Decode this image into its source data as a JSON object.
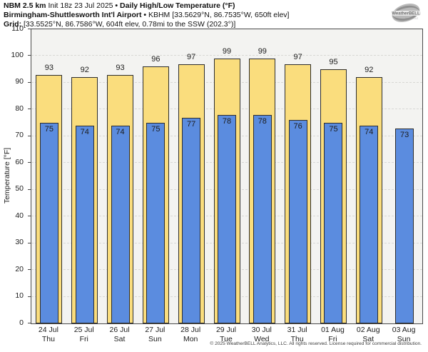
{
  "header": {
    "model": "NBM 2.5 km ",
    "init": "Init 18z 23 Jul 2025 ",
    "sep1": "• ",
    "product": "Daily High/Low Temperature (°F)",
    "station": "Birmingham-Shuttlesworth Int'l Airport ",
    "sep2": "• ",
    "station_meta": "KBHM [33.5629°N, 86.7535°W, 650ft elev]",
    "grid_label": "Grid: ",
    "grid_meta": "[33.5525°N, 86.7586°W, 604ft elev, 0.78mi to the SSW (202.3°)]"
  },
  "logo": {
    "brand": "WeatherBELL",
    "sub": "Analytics LLC"
  },
  "footer": {
    "copyright": "© 2025 WeatherBELL Analytics, LLC. All rights reserved. License required for commercial distribution."
  },
  "chart_data": {
    "type": "bar",
    "title": "Daily High/Low Temperature (°F)",
    "ylabel": "Temperature [°F]",
    "ylim": [
      0,
      110
    ],
    "ytick_step": 10,
    "grid": "horizontal-dashed",
    "legend_position": "none",
    "plot_bg": "#f3f3f1",
    "categories": [
      {
        "date": "24 Jul",
        "day": "Thu"
      },
      {
        "date": "25 Jul",
        "day": "Fri"
      },
      {
        "date": "26 Jul",
        "day": "Sat"
      },
      {
        "date": "27 Jul",
        "day": "Sun"
      },
      {
        "date": "28 Jul",
        "day": "Mon"
      },
      {
        "date": "29 Jul",
        "day": "Tue"
      },
      {
        "date": "30 Jul",
        "day": "Wed"
      },
      {
        "date": "31 Jul",
        "day": "Thu"
      },
      {
        "date": "01 Aug",
        "day": "Fri"
      },
      {
        "date": "02 Aug",
        "day": "Sat"
      },
      {
        "date": "03 Aug",
        "day": "Sun"
      }
    ],
    "series": [
      {
        "name": "High",
        "color": "#fadd7d",
        "border": "#2d2d2d",
        "values": [
          93,
          92,
          93,
          96,
          97,
          99,
          99,
          97,
          95,
          92,
          null
        ]
      },
      {
        "name": "Low",
        "color": "#5b8cdf",
        "border": "#2d2d2d",
        "values": [
          75,
          74,
          74,
          75,
          77,
          78,
          78,
          76,
          75,
          74,
          73
        ]
      }
    ]
  }
}
